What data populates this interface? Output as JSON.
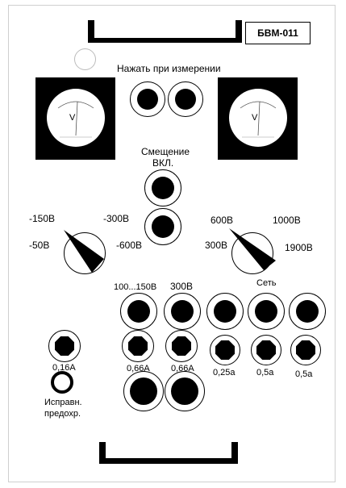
{
  "panel": {
    "model": "БВМ-011",
    "press_label": "Нажать при измерении",
    "meter_label_left": "V",
    "meter_label_right": "V",
    "bias_label_line1": "Смещение",
    "bias_label_line2": "ВКЛ."
  },
  "left_switch": {
    "labels": [
      "-150В",
      "-300В",
      "-50В",
      "-600В"
    ]
  },
  "right_switch": {
    "labels": [
      "600В",
      "1000В",
      "300В",
      "1900В"
    ],
    "caption": "Сеть"
  },
  "jacks": {
    "label_range": "100...150В",
    "label_300": "300В"
  },
  "fuses": {
    "left": "0,16А",
    "mid1": "0,66А",
    "mid2": "0,66А",
    "r1": "0,25а",
    "r2": "0,5а",
    "r3": "0,5а",
    "indicator_line1": "Исправн.",
    "indicator_line2": "предохр."
  }
}
